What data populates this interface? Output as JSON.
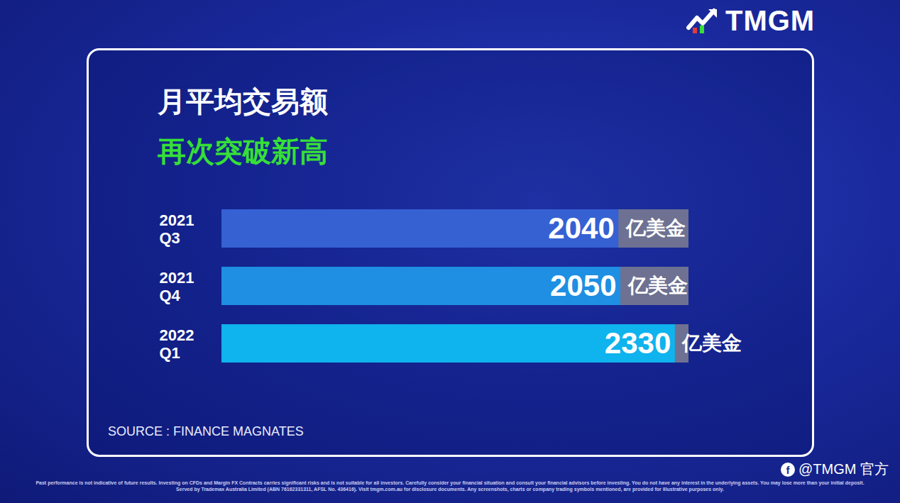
{
  "chart_data": {
    "type": "bar",
    "orientation": "horizontal",
    "title": "月平均交易额",
    "subtitle": "再次突破新高",
    "categories": [
      "2021 Q3",
      "2021 Q4",
      "2022 Q1"
    ],
    "values": [
      2040,
      2050,
      2330
    ],
    "unit_label": "亿美金",
    "colors": [
      "#3561d3",
      "#1e8fe3",
      "#0fb3ee"
    ],
    "data_labels": true,
    "tick_labels": "y",
    "xlim": [
      0,
      2400
    ],
    "xticks": [],
    "grid": false,
    "source": "SOURCE : FINANCE MAGNATES"
  },
  "page": {
    "logo": "TMGM",
    "handle": "@TMGM 官方",
    "disclaimer": "Past performance is not indicative of future results. Investing on CFDs and Margin FX Contracts carries significant risks and is not suitable for all investors. Carefully consider your financial situation and consult your financial advisors before investing. You do not have any interest in the underlying assets. You may lose more than your initial deposit. Served by Trademax Australia Limited (ABN 76162331311, AFSL No. 436416). Visit tmgm.com.au for disclosure documents. Any screenshots, charts or company trading symbols mentioned, are provided for illustrative purposes only."
  }
}
